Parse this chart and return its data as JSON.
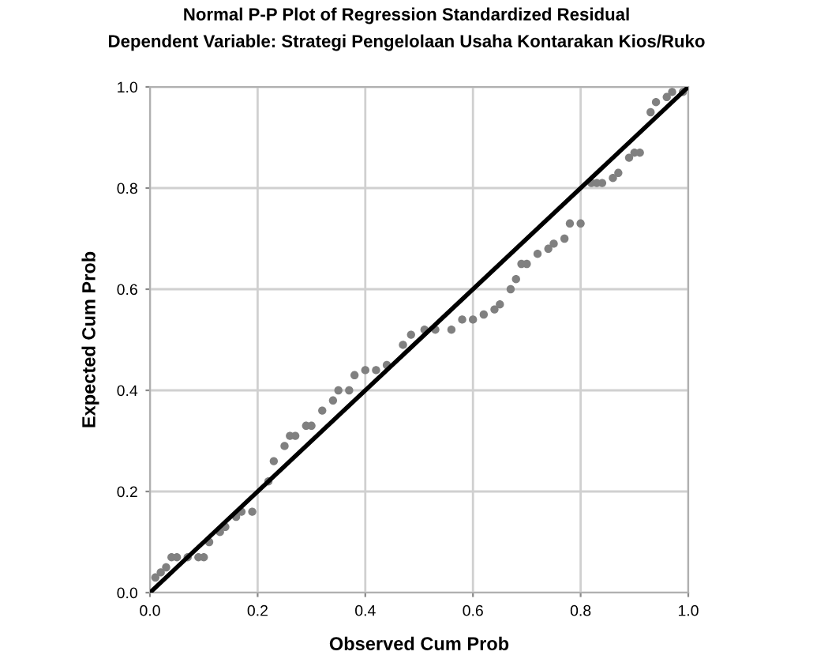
{
  "chart_data": {
    "type": "scatter",
    "title": "Normal P-P Plot of Regression Standardized Residual",
    "subtitle": "Dependent Variable: Strategi Pengelolaan Usaha Kontarakan Kios/Ruko",
    "xlabel": "Observed Cum Prob",
    "ylabel": "Expected Cum Prob",
    "xlim": [
      0,
      1
    ],
    "ylim": [
      0,
      1
    ],
    "xticks": [
      {
        "value": 0,
        "label": "0.0"
      },
      {
        "value": 0.2,
        "label": "0.2"
      },
      {
        "value": 0.4,
        "label": "0.4"
      },
      {
        "value": 0.6,
        "label": "0.6"
      },
      {
        "value": 0.8,
        "label": "0.8"
      },
      {
        "value": 1,
        "label": "1.0"
      }
    ],
    "yticks": [
      {
        "value": 0,
        "label": "0.0"
      },
      {
        "value": 0.2,
        "label": "0.2"
      },
      {
        "value": 0.4,
        "label": "0.4"
      },
      {
        "value": 0.6,
        "label": "0.6"
      },
      {
        "value": 0.8,
        "label": "0.8"
      },
      {
        "value": 1,
        "label": "1.0"
      }
    ],
    "grid": true,
    "series": [
      {
        "color": "#808080",
        "marker": "circle",
        "x": [
          0.01,
          0.02,
          0.03,
          0.04,
          0.05,
          0.07,
          0.09,
          0.1,
          0.11,
          0.13,
          0.14,
          0.16,
          0.17,
          0.19,
          0.22,
          0.23,
          0.25,
          0.26,
          0.27,
          0.29,
          0.3,
          0.32,
          0.34,
          0.35,
          0.37,
          0.38,
          0.4,
          0.42,
          0.44,
          0.47,
          0.485,
          0.51,
          0.53,
          0.56,
          0.58,
          0.6,
          0.62,
          0.64,
          0.65,
          0.67,
          0.68,
          0.69,
          0.7,
          0.72,
          0.74,
          0.75,
          0.77,
          0.78,
          0.8,
          0.82,
          0.83,
          0.84,
          0.86,
          0.87,
          0.89,
          0.9,
          0.91,
          0.93,
          0.94,
          0.96,
          0.97,
          0.99
        ],
        "values": [
          0.03,
          0.04,
          0.05,
          0.07,
          0.07,
          0.07,
          0.07,
          0.07,
          0.1,
          0.12,
          0.13,
          0.15,
          0.16,
          0.16,
          0.22,
          0.26,
          0.29,
          0.31,
          0.31,
          0.33,
          0.33,
          0.36,
          0.38,
          0.4,
          0.4,
          0.43,
          0.44,
          0.44,
          0.45,
          0.49,
          0.51,
          0.52,
          0.52,
          0.52,
          0.54,
          0.54,
          0.55,
          0.56,
          0.57,
          0.6,
          0.62,
          0.65,
          0.65,
          0.67,
          0.68,
          0.69,
          0.7,
          0.73,
          0.73,
          0.81,
          0.81,
          0.81,
          0.82,
          0.83,
          0.86,
          0.87,
          0.87,
          0.95,
          0.97,
          0.98,
          0.99,
          0.99
        ]
      },
      {
        "type": "line",
        "color": "#000000",
        "marker": "none",
        "x": [
          0,
          1
        ],
        "values": [
          0,
          1
        ]
      }
    ]
  }
}
